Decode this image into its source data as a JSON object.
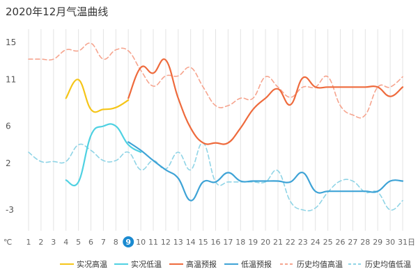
{
  "title": "2020年12月气温曲线",
  "chart_data": {
    "type": "line",
    "title": "2020年12月气温曲线",
    "unit_label": "℃",
    "y_ticks": [
      15,
      11,
      6,
      2,
      -3
    ],
    "ylim": [
      -5.5,
      17
    ],
    "x": [
      1,
      2,
      3,
      4,
      5,
      6,
      7,
      8,
      9,
      10,
      11,
      12,
      13,
      14,
      15,
      16,
      17,
      18,
      19,
      20,
      21,
      22,
      23,
      24,
      25,
      26,
      27,
      28,
      29,
      30,
      31
    ],
    "x_tick_labels": [
      "1",
      "2",
      "3",
      "4",
      "5",
      "6",
      "7",
      "8",
      "9",
      "10",
      "11",
      "12",
      "13",
      "14",
      "15",
      "16",
      "17",
      "18",
      "19",
      "20",
      "21",
      "22",
      "23",
      "24",
      "25",
      "26",
      "27",
      "28",
      "29",
      "30",
      "31日"
    ],
    "highlighted_day": 9,
    "grid_vertical": true,
    "legend_position": "bottom",
    "series": [
      {
        "name": "实况高温",
        "color": "#f5c518",
        "dashed": false,
        "points": [
          [
            4,
            9
          ],
          [
            5,
            11
          ],
          [
            6,
            7.8
          ],
          [
            7,
            7.8
          ],
          [
            8,
            8
          ],
          [
            9,
            8.8
          ]
        ]
      },
      {
        "name": "实况低温",
        "color": "#4fd1e2",
        "dashed": false,
        "points": [
          [
            4,
            0.2
          ],
          [
            5,
            0
          ],
          [
            6,
            5
          ],
          [
            7,
            6
          ],
          [
            8,
            6
          ],
          [
            9,
            4
          ],
          [
            10,
            3.2
          ]
        ]
      },
      {
        "name": "高温预报",
        "color": "#ee6a3c",
        "dashed": false,
        "points": [
          [
            9,
            9
          ],
          [
            10,
            12.3
          ],
          [
            11,
            11.7
          ],
          [
            12,
            13.1
          ],
          [
            13,
            9
          ],
          [
            14,
            5.8
          ],
          [
            15,
            4.2
          ],
          [
            16,
            4.2
          ],
          [
            17,
            4.2
          ],
          [
            18,
            5.8
          ],
          [
            19,
            7.8
          ],
          [
            20,
            9
          ],
          [
            21,
            10
          ],
          [
            22,
            8.3
          ],
          [
            23,
            11.2
          ],
          [
            24,
            10.2
          ],
          [
            25,
            10.2
          ],
          [
            26,
            10.2
          ],
          [
            27,
            10.2
          ],
          [
            28,
            10.2
          ],
          [
            29,
            10.2
          ],
          [
            30,
            9.2
          ],
          [
            31,
            10.2
          ]
        ]
      },
      {
        "name": "低温预报",
        "color": "#3ea3d6",
        "dashed": false,
        "points": [
          [
            9,
            4.3
          ],
          [
            10,
            3.4
          ],
          [
            11,
            2.3
          ],
          [
            12,
            1.3
          ],
          [
            13,
            0.4
          ],
          [
            14,
            -2
          ],
          [
            15,
            0
          ],
          [
            16,
            0
          ],
          [
            17,
            1
          ],
          [
            18,
            0.1
          ],
          [
            19,
            0.1
          ],
          [
            20,
            0.1
          ],
          [
            21,
            0.1
          ],
          [
            22,
            0
          ],
          [
            23,
            1
          ],
          [
            24,
            -1
          ],
          [
            25,
            -1
          ],
          [
            26,
            -1
          ],
          [
            27,
            -1
          ],
          [
            28,
            -1
          ],
          [
            29,
            -1
          ],
          [
            30,
            0.1
          ],
          [
            31,
            0.1
          ]
        ]
      },
      {
        "name": "历史均值高温",
        "color": "#f6a48e",
        "dashed": true,
        "points": [
          [
            1,
            13.2
          ],
          [
            2,
            13.2
          ],
          [
            3,
            13.2
          ],
          [
            4,
            14.2
          ],
          [
            5,
            14.1
          ],
          [
            6,
            14.9
          ],
          [
            7,
            13.2
          ],
          [
            8,
            14.2
          ],
          [
            9,
            14.1
          ],
          [
            10,
            12
          ],
          [
            11,
            10.3
          ],
          [
            12,
            11.4
          ],
          [
            13,
            11.4
          ],
          [
            14,
            12.3
          ],
          [
            15,
            10.2
          ],
          [
            16,
            8.2
          ],
          [
            17,
            8.2
          ],
          [
            18,
            9
          ],
          [
            19,
            9
          ],
          [
            20,
            11.3
          ],
          [
            21,
            10.2
          ],
          [
            22,
            9.1
          ],
          [
            23,
            10.2
          ],
          [
            24,
            10.2
          ],
          [
            25,
            11.3
          ],
          [
            26,
            8.2
          ],
          [
            27,
            7.2
          ],
          [
            28,
            7.2
          ],
          [
            29,
            10.2
          ],
          [
            30,
            10.2
          ],
          [
            31,
            11.3
          ]
        ]
      },
      {
        "name": "历史均值低温",
        "color": "#8fd4e6",
        "dashed": true,
        "points": [
          [
            1,
            3.2
          ],
          [
            2,
            2.2
          ],
          [
            3,
            2.2
          ],
          [
            4,
            2.2
          ],
          [
            5,
            4
          ],
          [
            6,
            3.4
          ],
          [
            7,
            2.3
          ],
          [
            8,
            2.3
          ],
          [
            9,
            3.2
          ],
          [
            10,
            1.3
          ],
          [
            11,
            2.3
          ],
          [
            12,
            1.4
          ],
          [
            13,
            3.2
          ],
          [
            14,
            1.3
          ],
          [
            15,
            4.2
          ],
          [
            16,
            0
          ],
          [
            17,
            0
          ],
          [
            18,
            0
          ],
          [
            19,
            0
          ],
          [
            20,
            0
          ],
          [
            21,
            1.2
          ],
          [
            22,
            -2.1
          ],
          [
            23,
            -3
          ],
          [
            24,
            -2.8
          ],
          [
            25,
            -1.1
          ],
          [
            26,
            0.1
          ],
          [
            27,
            0.1
          ],
          [
            28,
            -1.1
          ],
          [
            29,
            -1.1
          ],
          [
            30,
            -3
          ],
          [
            31,
            -2
          ]
        ]
      }
    ]
  }
}
